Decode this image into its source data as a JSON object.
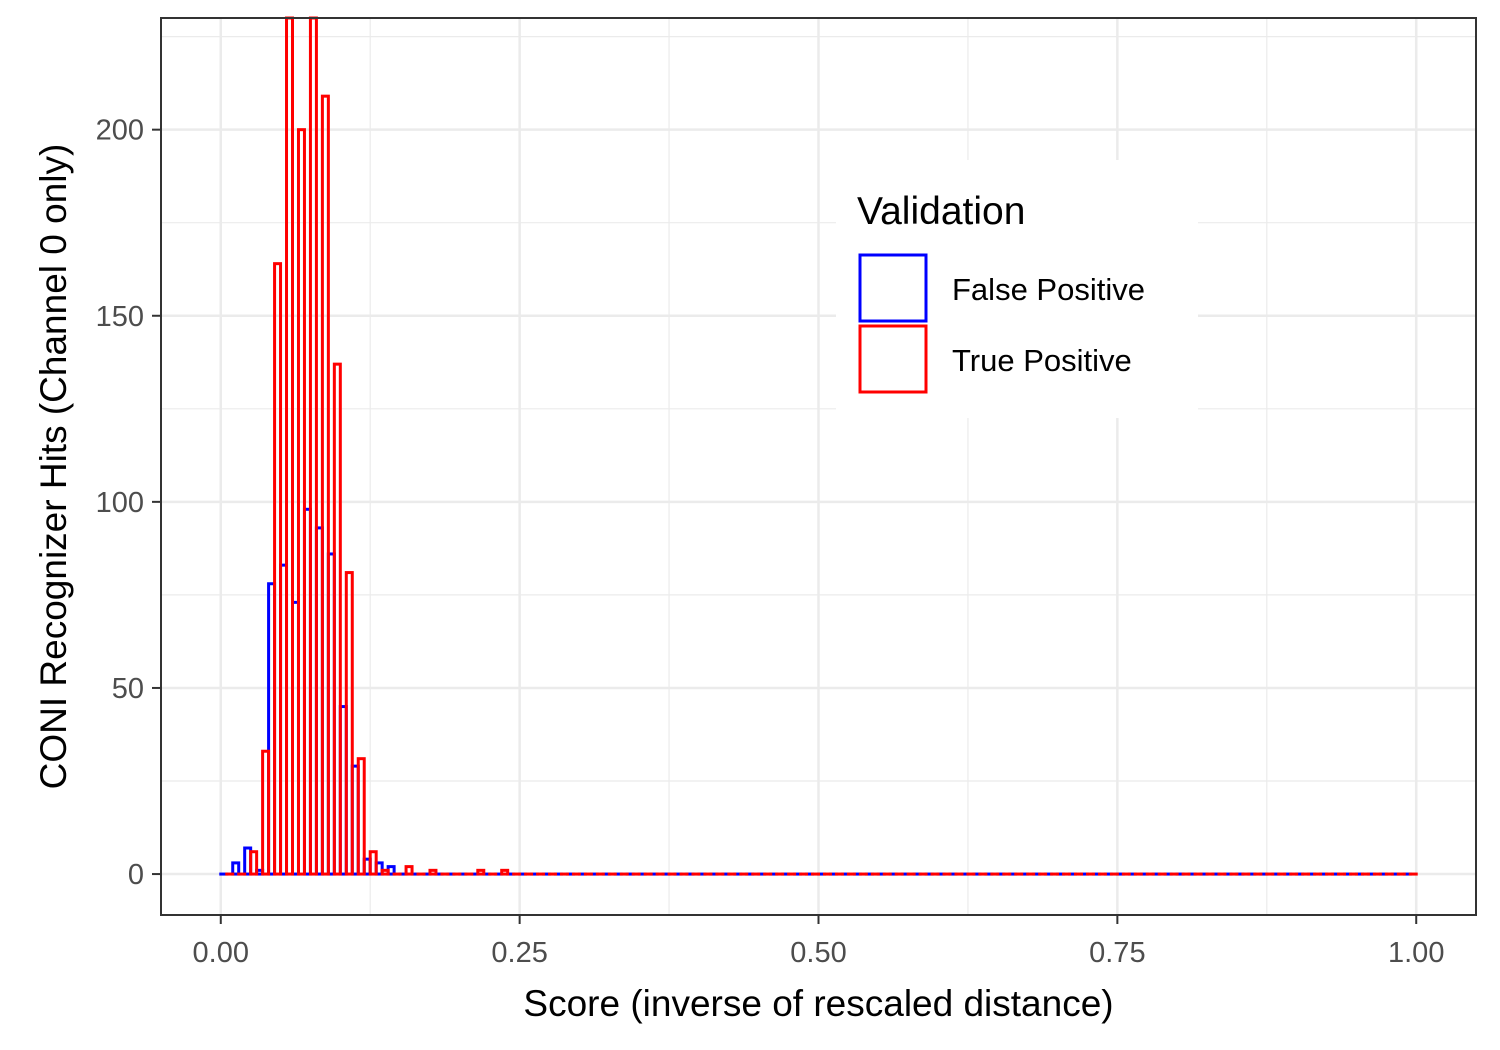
{
  "chart_data": {
    "type": "bar",
    "subtype": "overlaid-histogram-outline",
    "xlabel": "Score (inverse of rescaled distance)",
    "ylabel": "CONI Recognizer Hits (Channel 0 only)",
    "xlim": [
      -0.05,
      1.05
    ],
    "ylim": [
      -11,
      230
    ],
    "x_ticks": [
      0,
      0.25,
      0.5,
      0.75,
      1
    ],
    "x_tick_labels": [
      "0.00",
      "0.25",
      "0.50",
      "0.75",
      "1.00"
    ],
    "y_ticks": [
      0,
      50,
      100,
      150,
      200
    ],
    "y_tick_labels": [
      "0",
      "50",
      "100",
      "150",
      "200"
    ],
    "grid": true,
    "legend": {
      "title": "Validation",
      "position": "top-right"
    },
    "bin_width": 0.01,
    "bin_start": 0.0,
    "series": [
      {
        "name": "False Positive",
        "color": "#0000ff",
        "values": [
          0,
          3,
          7,
          1,
          78,
          83,
          73,
          98,
          93,
          86,
          45,
          29,
          4,
          3,
          2,
          0,
          0,
          0,
          0,
          0,
          0,
          0,
          0,
          0,
          0,
          0,
          0,
          0,
          0,
          0,
          0,
          0,
          0,
          0,
          0,
          0,
          0,
          0,
          0,
          0,
          0,
          0,
          0,
          0,
          0,
          0,
          0,
          0,
          0,
          0,
          0,
          0,
          0,
          0,
          0,
          0,
          0,
          0,
          0,
          0,
          0,
          0,
          0,
          0,
          0,
          0,
          0,
          0,
          0,
          0,
          0,
          0,
          0,
          0,
          0,
          0,
          0,
          0,
          0,
          0,
          0,
          0,
          0,
          0,
          0,
          0,
          0,
          0,
          0,
          0,
          0,
          0,
          0,
          0,
          0,
          0,
          0,
          0,
          0,
          0
        ]
      },
      {
        "name": "True Positive",
        "color": "#ff0000",
        "values": [
          0,
          0,
          6,
          33,
          164,
          230,
          200,
          230,
          209,
          137,
          81,
          31,
          6,
          1,
          0,
          2,
          0,
          1,
          0,
          0,
          0,
          1,
          0,
          1,
          0,
          0,
          0,
          0,
          0,
          0,
          0,
          0,
          0,
          0,
          0,
          0,
          0,
          0,
          0,
          0,
          0,
          0,
          0,
          0,
          0,
          0,
          0,
          0,
          0,
          0,
          0,
          0,
          0,
          0,
          0,
          0,
          0,
          0,
          0,
          0,
          0,
          0,
          0,
          0,
          0,
          0,
          0,
          0,
          0,
          0,
          0,
          0,
          0,
          0,
          0,
          0,
          0,
          0,
          0,
          0,
          0,
          0,
          0,
          0,
          0,
          0,
          0,
          0,
          0,
          0,
          0,
          0,
          0,
          0,
          0,
          0,
          0,
          0,
          0,
          0
        ]
      }
    ]
  }
}
